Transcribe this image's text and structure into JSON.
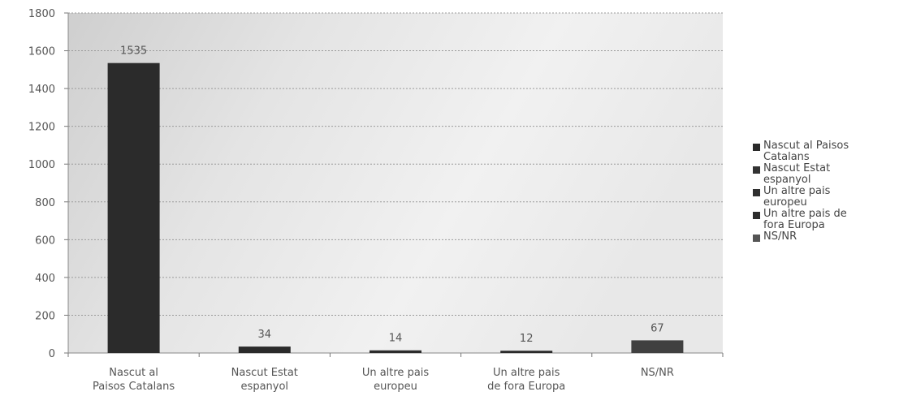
{
  "chart_data": {
    "type": "bar",
    "categories": [
      "Nascut al Paisos Catalans",
      "Nascut Estat espanyol",
      "Un altre pais europeu",
      "Un altre pais de fora Europa",
      "NS/NR"
    ],
    "category_label_lines": [
      [
        "Nascut al",
        "Paisos Catalans"
      ],
      [
        "Nascut Estat",
        "espanyol"
      ],
      [
        "Un altre pais",
        "europeu"
      ],
      [
        "Un altre pais",
        "de fora Europa"
      ],
      [
        "NS/NR"
      ]
    ],
    "values": [
      1535,
      34,
      14,
      12,
      67
    ],
    "data_labels": [
      "1535",
      "34",
      "14",
      "12",
      "67"
    ],
    "ylim": [
      0,
      1800
    ],
    "yticks": [
      0,
      200,
      400,
      600,
      800,
      1000,
      1200,
      1400,
      1600,
      1800
    ],
    "grid": true,
    "legend_position": "right",
    "legend": [
      {
        "lines": [
          "Nascut al Paisos",
          "Catalans"
        ],
        "color": "#2a2a2a"
      },
      {
        "lines": [
          "Nascut Estat",
          "espanyol"
        ],
        "color": "#333333"
      },
      {
        "lines": [
          "Un altre pais",
          "europeu"
        ],
        "color": "#2f2f2f"
      },
      {
        "lines": [
          "Un altre pais de",
          "fora Europa"
        ],
        "color": "#2d2d2d"
      },
      {
        "lines": [
          "NS/NR"
        ],
        "color": "#555555"
      }
    ],
    "bar_colors": [
      "#2b2b2b",
      "#2b2b2b",
      "#2b2b2b",
      "#2b2b2b",
      "#404040"
    ]
  }
}
